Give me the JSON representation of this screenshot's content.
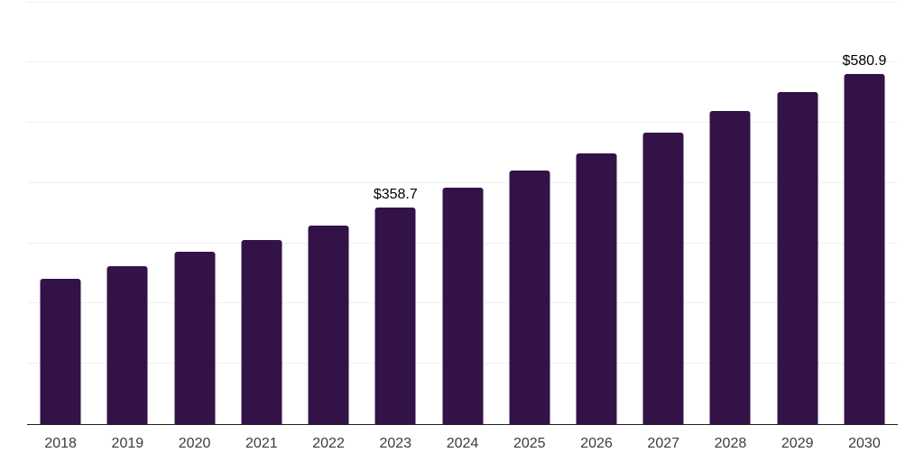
{
  "chart_data": {
    "type": "bar",
    "title": "",
    "xlabel": "",
    "ylabel": "",
    "categories": [
      "2018",
      "2019",
      "2020",
      "2021",
      "2022",
      "2023",
      "2024",
      "2025",
      "2026",
      "2027",
      "2028",
      "2029",
      "2030"
    ],
    "values": [
      241,
      262,
      286,
      306,
      329,
      358.7,
      392,
      421,
      449,
      483.5,
      519,
      551,
      580.9
    ],
    "labeled_points": [
      {
        "category": "2023",
        "label": "$358.7"
      },
      {
        "category": "2030",
        "label": "$580.9"
      }
    ],
    "ylim": [
      0,
      700
    ],
    "gridline_step": 100,
    "grid": "horizontal-only",
    "y_tick_labels_shown": false,
    "legend": "none",
    "colors": {
      "bar": "#331347",
      "gridline": "#f0f0f0",
      "axis": "#222222",
      "value_label": "#000000",
      "tick_label": "#3c3c3c",
      "background": "#ffffff"
    }
  }
}
